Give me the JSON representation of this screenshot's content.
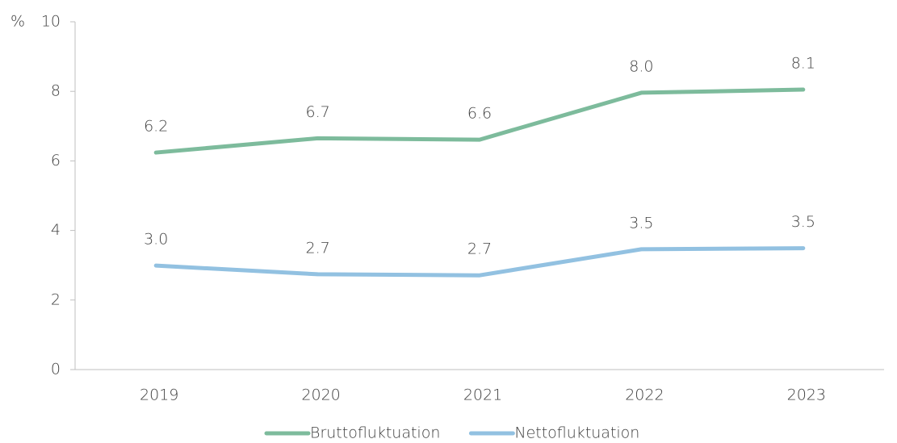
{
  "chart_data": {
    "type": "line",
    "y_label": "%",
    "categories": [
      "2019",
      "2020",
      "2021",
      "2022",
      "2023"
    ],
    "series": [
      {
        "name": "Bruttofluktuation",
        "color": "#7dbb9c",
        "values": [
          6.24,
          6.65,
          6.61,
          7.96,
          8.05
        ],
        "value_labels": [
          "6.2",
          "6.7",
          "6.6",
          "8.0",
          "8.1"
        ]
      },
      {
        "name": "Nettofluktuation",
        "color": "#92c1e1",
        "values": [
          2.99,
          2.74,
          2.71,
          3.46,
          3.49
        ],
        "value_labels": [
          "3.0",
          "2.7",
          "2.7",
          "3.5",
          "3.5"
        ]
      }
    ],
    "ylim": [
      0,
      10
    ],
    "yticks": [
      0,
      2,
      4,
      6,
      8,
      10
    ],
    "grid": false,
    "legend": "bottom"
  }
}
